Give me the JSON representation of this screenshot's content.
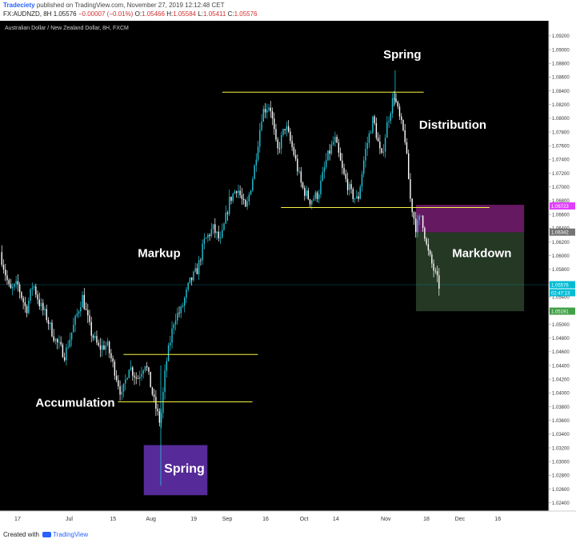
{
  "header": {
    "author": "Tradeciety",
    "published": "published on TradingView.com, November 27, 2019 12:12:48 CET",
    "symbol": "FX:AUDNZD, 8H",
    "last": "1.05576",
    "change": "−0.00007 (−0.01%)",
    "o_label": "O:",
    "o": "1.05466",
    "h_label": "H:",
    "h": "1.05584",
    "l_label": "L:",
    "l": "1.05411",
    "c_label": "C:",
    "c": "1.05576"
  },
  "footer": {
    "created": "Created with",
    "brand": "TradingView"
  },
  "colors": {
    "background": "#000000",
    "up": "#26c6da",
    "down": "#ffffff",
    "level": "#f5f543",
    "accum_box": "#5b2ca0",
    "dist_box": "#6a1a66",
    "markdown_box": "#263b26"
  },
  "chart_data": {
    "type": "candlestick",
    "title": "Australian Dollar / New Zealand Dollar, 8H, FXCM",
    "ylim": [
      1.0228,
      1.0942
    ],
    "y_ticks": [
      "1.09200",
      "1.09000",
      "1.08800",
      "1.08600",
      "1.08400",
      "1.08200",
      "1.08000",
      "1.07800",
      "1.07600",
      "1.07400",
      "1.07200",
      "1.07000",
      "1.06800",
      "1.06600",
      "1.06400",
      "1.06200",
      "1.06000",
      "1.05800",
      "1.05600",
      "1.05400",
      "1.05200",
      "1.05000",
      "1.04800",
      "1.04600",
      "1.04400",
      "1.04200",
      "1.04000",
      "1.03800",
      "1.03600",
      "1.03400",
      "1.03200",
      "1.03000",
      "1.02800",
      "1.02600",
      "1.02400"
    ],
    "x_ticks": [
      "17",
      "Jul",
      "15",
      "Aug",
      "19",
      "Sep",
      "16",
      "Oct",
      "14",
      "Nov",
      "18",
      "Dec",
      "16"
    ],
    "x_tick_t": [
      0.032,
      0.126,
      0.206,
      0.275,
      0.353,
      0.414,
      0.484,
      0.554,
      0.612,
      0.703,
      0.777,
      0.838,
      0.907
    ],
    "price_badges": [
      {
        "text": "1.06723",
        "value": 1.06723,
        "color": "#e040fb"
      },
      {
        "text": "1.06342",
        "value": 1.06342,
        "color": "#757575"
      },
      {
        "text": "1.05576",
        "value": 1.05576,
        "color": "#00bcd4"
      },
      {
        "text": "02:47:13",
        "value": 1.0546,
        "color": "#00bcd4"
      },
      {
        "text": "1.05191",
        "value": 1.05191,
        "color": "#43a047"
      }
    ],
    "series": [
      {
        "t": 0.0,
        "v": 1.0605
      },
      {
        "t": 0.018,
        "v": 1.0548
      },
      {
        "t": 0.032,
        "v": 1.0558
      },
      {
        "t": 0.048,
        "v": 1.052
      },
      {
        "t": 0.06,
        "v": 1.056
      },
      {
        "t": 0.072,
        "v": 1.053
      },
      {
        "t": 0.085,
        "v": 1.051
      },
      {
        "t": 0.1,
        "v": 1.0478
      },
      {
        "t": 0.118,
        "v": 1.0455
      },
      {
        "t": 0.135,
        "v": 1.05
      },
      {
        "t": 0.15,
        "v": 1.054
      },
      {
        "t": 0.165,
        "v": 1.049
      },
      {
        "t": 0.18,
        "v": 1.0465
      },
      {
        "t": 0.195,
        "v": 1.047
      },
      {
        "t": 0.21,
        "v": 1.043
      },
      {
        "t": 0.222,
        "v": 1.0395
      },
      {
        "t": 0.235,
        "v": 1.044
      },
      {
        "t": 0.25,
        "v": 1.042
      },
      {
        "t": 0.265,
        "v": 1.0445
      },
      {
        "t": 0.28,
        "v": 1.039
      },
      {
        "t": 0.292,
        "v": 1.0355
      },
      {
        "t": 0.302,
        "v": 1.044
      },
      {
        "t": 0.318,
        "v": 1.051
      },
      {
        "t": 0.33,
        "v": 1.052
      },
      {
        "t": 0.345,
        "v": 1.056
      },
      {
        "t": 0.36,
        "v": 1.058
      },
      {
        "t": 0.372,
        "v": 1.062
      },
      {
        "t": 0.388,
        "v": 1.064
      },
      {
        "t": 0.402,
        "v": 1.062
      },
      {
        "t": 0.418,
        "v": 1.068
      },
      {
        "t": 0.432,
        "v": 1.07
      },
      {
        "t": 0.448,
        "v": 1.0665
      },
      {
        "t": 0.462,
        "v": 1.072
      },
      {
        "t": 0.478,
        "v": 1.081
      },
      {
        "t": 0.492,
        "v": 1.082
      },
      {
        "t": 0.505,
        "v": 1.075
      },
      {
        "t": 0.52,
        "v": 1.079
      },
      {
        "t": 0.535,
        "v": 1.075
      },
      {
        "t": 0.55,
        "v": 1.07
      },
      {
        "t": 0.565,
        "v": 1.068
      },
      {
        "t": 0.58,
        "v": 1.069
      },
      {
        "t": 0.595,
        "v": 1.074
      },
      {
        "t": 0.61,
        "v": 1.077
      },
      {
        "t": 0.625,
        "v": 1.072
      },
      {
        "t": 0.64,
        "v": 1.069
      },
      {
        "t": 0.652,
        "v": 1.068
      },
      {
        "t": 0.665,
        "v": 1.075
      },
      {
        "t": 0.68,
        "v": 1.08
      },
      {
        "t": 0.695,
        "v": 1.074
      },
      {
        "t": 0.705,
        "v": 1.079
      },
      {
        "t": 0.718,
        "v": 1.0835
      },
      {
        "t": 0.728,
        "v": 1.08
      },
      {
        "t": 0.738,
        "v": 1.077
      },
      {
        "t": 0.748,
        "v": 1.068
      },
      {
        "t": 0.758,
        "v": 1.064
      },
      {
        "t": 0.768,
        "v": 1.066
      },
      {
        "t": 0.778,
        "v": 1.061
      },
      {
        "t": 0.79,
        "v": 1.058
      },
      {
        "t": 0.8,
        "v": 1.0556
      }
    ],
    "levels": [
      {
        "t1": 0.405,
        "t2": 0.772,
        "v": 1.0838
      },
      {
        "t1": 0.512,
        "t2": 0.892,
        "v": 1.067
      },
      {
        "t1": 0.225,
        "t2": 0.47,
        "v": 1.0456
      },
      {
        "t1": 0.215,
        "t2": 0.46,
        "v": 1.0387
      }
    ],
    "zones": [
      {
        "t1": 0.262,
        "t2": 0.378,
        "v1": 1.0324,
        "v2": 1.0251,
        "kind": "accum_box"
      },
      {
        "t1": 0.758,
        "t2": 0.955,
        "v1": 1.0674,
        "v2": 1.0634,
        "kind": "dist_box"
      },
      {
        "t1": 0.758,
        "t2": 0.955,
        "v1": 1.0634,
        "v2": 1.0519,
        "kind": "markdown_box"
      }
    ],
    "annotations": [
      {
        "text": "Spring",
        "t": 0.733,
        "v": 1.0887,
        "size": 15
      },
      {
        "text": "Distribution",
        "t": 0.825,
        "v": 1.0785,
        "size": 15
      },
      {
        "text": "Markup",
        "t": 0.29,
        "v": 1.0598,
        "size": 15
      },
      {
        "text": "Markdown",
        "t": 0.878,
        "v": 1.0598,
        "size": 15
      },
      {
        "text": "Accumulation",
        "t": 0.137,
        "v": 1.038,
        "size": 15
      },
      {
        "text": "Spring",
        "t": 0.336,
        "v": 1.0284,
        "size": 16
      }
    ]
  }
}
